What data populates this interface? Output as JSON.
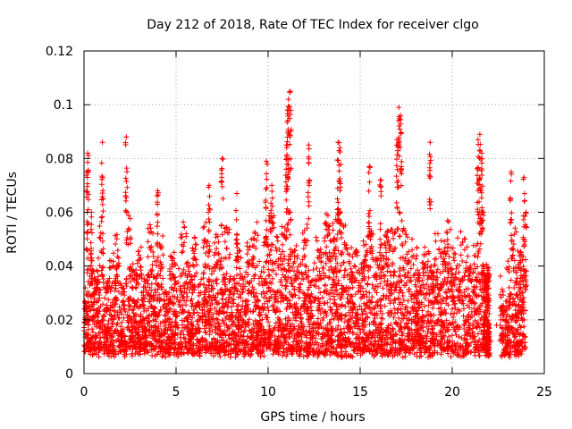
{
  "chart_data": {
    "type": "scatter",
    "title": "Day 212 of 2018, Rate Of TEC Index for receiver clgo",
    "xlabel": "GPS time / hours",
    "ylabel": "ROTI / TECUs",
    "xlim": [
      0,
      25
    ],
    "ylim": [
      0,
      0.12
    ],
    "xticks": [
      0,
      5,
      10,
      15,
      20,
      25
    ],
    "xtick_labels": [
      "0",
      "5",
      "10",
      "15",
      "20",
      "25"
    ],
    "yticks": [
      0,
      0.02,
      0.04,
      0.06,
      0.08,
      0.1,
      0.12
    ],
    "ytick_labels": [
      "0",
      "0.02",
      "0.04",
      "0.06",
      "0.08",
      "0.1",
      "0.12"
    ],
    "grid": true,
    "marker": "+",
    "color": "#ff0000",
    "point_count_note": "",
    "series": [
      {
        "values_x": [
          0.1,
          0.3,
          0.5,
          0.8,
          1.1,
          1.4,
          1.7,
          2.0,
          2.3,
          2.6,
          2.9,
          3.2,
          3.5,
          3.8,
          4.1,
          4.4,
          4.7,
          5.0,
          5.3,
          5.6,
          5.9,
          6.2,
          6.5,
          6.8,
          7.1,
          7.4,
          7.7,
          8.0,
          8.3,
          8.6,
          8.9,
          9.2,
          9.5,
          9.8,
          10.1,
          10.4,
          10.7,
          11.0,
          11.3,
          11.6,
          11.9,
          12.2,
          12.5,
          12.8,
          13.1,
          13.4,
          13.7,
          14.0,
          14.3,
          14.6,
          14.9,
          15.2,
          15.5,
          15.8,
          16.1,
          16.4,
          16.7,
          17.0,
          17.3,
          17.6,
          17.9,
          18.2,
          18.5,
          18.8,
          19.1,
          19.4,
          19.7,
          20.0,
          20.3,
          20.6,
          20.9,
          21.2,
          21.5,
          21.8,
          22.1,
          22.4,
          22.7,
          23.0,
          23.3,
          23.6,
          23.9,
          0.2,
          0.4,
          0.15,
          1.0,
          2.3,
          4.0,
          6.8,
          7.5,
          8.3,
          9.9,
          10.2,
          11.0,
          11.1,
          11.2,
          11.05,
          12.2,
          13.8,
          13.9,
          15.5,
          16.1,
          17.0,
          17.1,
          17.2,
          18.8,
          21.4,
          21.5,
          21.6,
          23.2,
          23.9,
          24.0
        ],
        "values_y": [
          0.015,
          0.025,
          0.02,
          0.03,
          0.018,
          0.022,
          0.028,
          0.016,
          0.035,
          0.02,
          0.025,
          0.018,
          0.03,
          0.022,
          0.027,
          0.015,
          0.024,
          0.019,
          0.03,
          0.021,
          0.026,
          0.017,
          0.033,
          0.02,
          0.028,
          0.023,
          0.031,
          0.018,
          0.025,
          0.02,
          0.027,
          0.03,
          0.022,
          0.026,
          0.034,
          0.028,
          0.03,
          0.038,
          0.025,
          0.022,
          0.03,
          0.02,
          0.027,
          0.024,
          0.033,
          0.03,
          0.036,
          0.03,
          0.028,
          0.024,
          0.02,
          0.026,
          0.03,
          0.022,
          0.025,
          0.028,
          0.03,
          0.034,
          0.03,
          0.027,
          0.024,
          0.02,
          0.025,
          0.022,
          0.028,
          0.026,
          0.03,
          0.024,
          0.028,
          0.026,
          0.022,
          0.03,
          0.035,
          0.02,
          0.012,
          0.018,
          0.015,
          0.022,
          0.028,
          0.025,
          0.02,
          0.082,
          0.06,
          0.075,
          0.086,
          0.088,
          0.068,
          0.07,
          0.08,
          0.067,
          0.079,
          0.07,
          0.085,
          0.102,
          0.105,
          0.098,
          0.085,
          0.086,
          0.084,
          0.077,
          0.072,
          0.087,
          0.099,
          0.096,
          0.086,
          0.087,
          0.089,
          0.082,
          0.075,
          0.073,
          0.06
        ]
      }
    ]
  }
}
